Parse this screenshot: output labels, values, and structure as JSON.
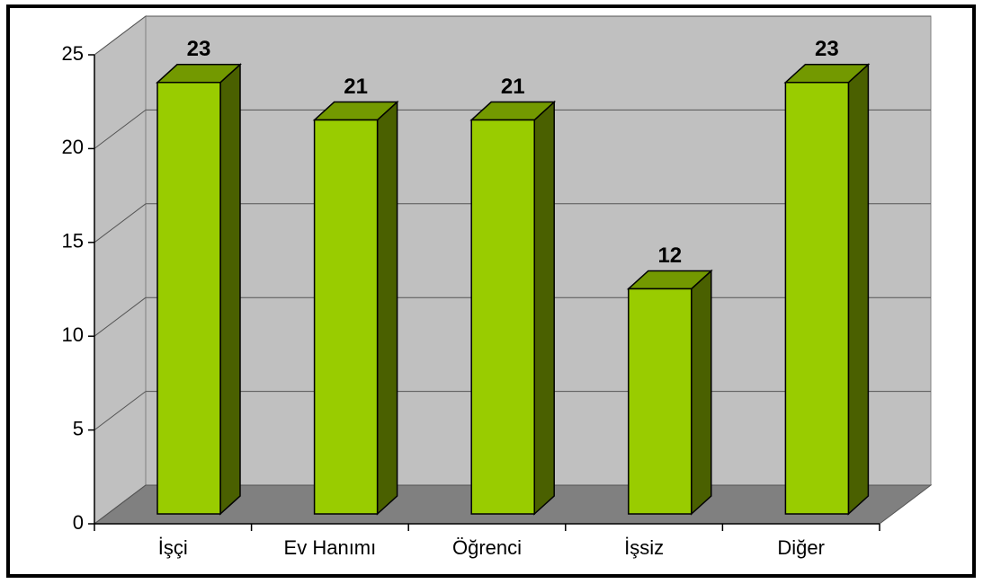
{
  "chart_data": {
    "type": "bar3d",
    "categories": [
      "İşçi",
      "Ev Hanımı",
      "Öğrenci",
      "İşsiz",
      "Diğer"
    ],
    "values": [
      23,
      21,
      21,
      12,
      23
    ],
    "color": "#99cc00",
    "ylim": [
      0,
      25
    ],
    "yticks": [
      0,
      5,
      10,
      15,
      20,
      25
    ],
    "grid": true
  }
}
